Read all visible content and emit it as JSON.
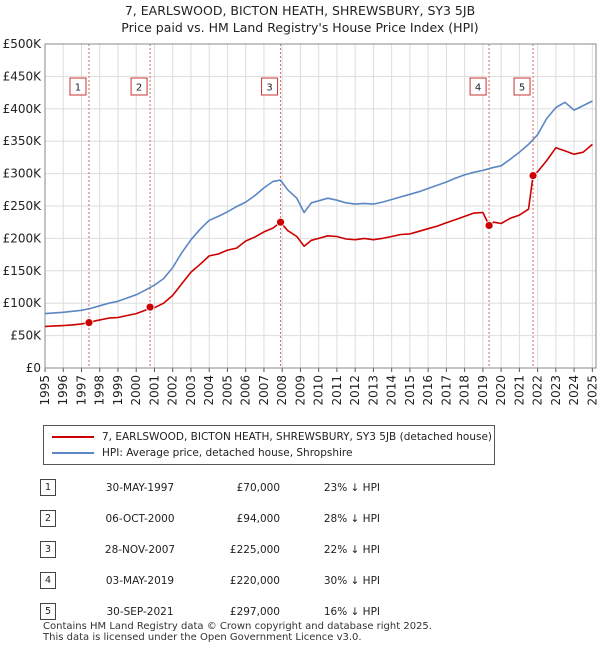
{
  "title_line1": "7, EARLSWOOD, BICTON HEATH, SHREWSBURY, SY3 5JB",
  "title_line2": "Price paid vs. HM Land Registry's House Price Index (HPI)",
  "chart_data": {
    "type": "line",
    "xlim": [
      1995,
      2025.2
    ],
    "ylim": [
      0,
      500000
    ],
    "ytick_values": [
      0,
      50000,
      100000,
      150000,
      200000,
      250000,
      300000,
      350000,
      400000,
      450000,
      500000
    ],
    "ytick_labels": [
      "£0",
      "£50K",
      "£100K",
      "£150K",
      "£200K",
      "£250K",
      "£300K",
      "£350K",
      "£400K",
      "£450K",
      "£500K"
    ],
    "xtick_labels": [
      "1995",
      "1996",
      "1997",
      "1998",
      "1999",
      "2000",
      "2001",
      "2002",
      "2003",
      "2004",
      "2005",
      "2006",
      "2007",
      "2008",
      "2009",
      "2010",
      "2011",
      "2012",
      "2013",
      "2014",
      "2015",
      "2016",
      "2017",
      "2018",
      "2019",
      "2020",
      "2021",
      "2022",
      "2023",
      "2024",
      "2025"
    ],
    "series": [
      {
        "name": "7, EARLSWOOD, BICTON HEATH, SHREWSBURY, SY3 5JB (detached house)",
        "color": "#cc0000",
        "x": [
          1995.0,
          1995.5,
          1996.0,
          1996.5,
          1997.0,
          1997.41,
          1997.8,
          1998.5,
          1999.0,
          1999.5,
          2000.0,
          2000.5,
          2000.76,
          2001.0,
          2001.5,
          2002.0,
          2002.5,
          2003.0,
          2003.5,
          2004.0,
          2004.5,
          2005.0,
          2005.5,
          2006.0,
          2006.5,
          2007.0,
          2007.5,
          2007.91,
          2008.3,
          2008.8,
          2009.2,
          2009.6,
          2010.0,
          2010.5,
          2011.0,
          2011.5,
          2012.0,
          2012.5,
          2013.0,
          2013.5,
          2014.0,
          2014.5,
          2015.0,
          2015.5,
          2016.0,
          2016.5,
          2017.0,
          2017.5,
          2018.0,
          2018.5,
          2019.0,
          2019.34,
          2019.6,
          2020.0,
          2020.5,
          2021.0,
          2021.5,
          2021.75,
          2022.0,
          2022.5,
          2023.0,
          2023.5,
          2024.0,
          2024.5,
          2025.0
        ],
        "y": [
          64000,
          65000,
          65500,
          66500,
          68000,
          70000,
          73000,
          77000,
          78000,
          81000,
          84000,
          89000,
          94000,
          93000,
          100000,
          112000,
          130000,
          148000,
          160000,
          173000,
          176000,
          182000,
          185000,
          196000,
          202000,
          210000,
          216000,
          225000,
          212000,
          203000,
          188000,
          197000,
          200000,
          204000,
          203000,
          199000,
          198000,
          200000,
          198000,
          200000,
          203000,
          206000,
          207000,
          211000,
          215000,
          219000,
          224000,
          229000,
          234000,
          239000,
          240000,
          220000,
          225000,
          223000,
          231000,
          236000,
          245000,
          297000,
          303000,
          320000,
          340000,
          335000,
          330000,
          333000,
          345000
        ]
      },
      {
        "name": "HPI: Average price, detached house, Shropshire",
        "color": "#5b87c4",
        "x": [
          1995.0,
          1995.5,
          1996.0,
          1996.5,
          1997.0,
          1997.5,
          1998.0,
          1998.5,
          1999.0,
          1999.5,
          2000.0,
          2000.5,
          2001.0,
          2001.5,
          2002.0,
          2002.5,
          2003.0,
          2003.5,
          2004.0,
          2004.5,
          2005.0,
          2005.5,
          2006.0,
          2006.5,
          2007.0,
          2007.5,
          2007.9,
          2008.3,
          2008.8,
          2009.2,
          2009.6,
          2010.0,
          2010.5,
          2011.0,
          2011.5,
          2012.0,
          2012.5,
          2013.0,
          2013.5,
          2014.0,
          2014.5,
          2015.0,
          2015.5,
          2016.0,
          2016.5,
          2017.0,
          2017.5,
          2018.0,
          2018.5,
          2019.0,
          2019.5,
          2020.0,
          2020.5,
          2021.0,
          2021.5,
          2022.0,
          2022.5,
          2023.0,
          2023.5,
          2024.0,
          2024.5,
          2025.0
        ],
        "y": [
          84000,
          85000,
          86000,
          87500,
          89000,
          92000,
          96000,
          100000,
          103000,
          108000,
          113000,
          120000,
          128000,
          138000,
          155000,
          178000,
          198000,
          214000,
          228000,
          234000,
          241000,
          249000,
          256000,
          266000,
          278000,
          288000,
          290000,
          275000,
          262000,
          240000,
          255000,
          258000,
          262000,
          259000,
          255000,
          253000,
          254000,
          253000,
          256000,
          260000,
          264000,
          268000,
          272000,
          277000,
          282000,
          287000,
          293000,
          298000,
          302000,
          305000,
          309000,
          312000,
          322000,
          333000,
          345000,
          360000,
          385000,
          402000,
          410000,
          398000,
          405000,
          412000
        ]
      }
    ],
    "sales": [
      {
        "n": "1",
        "x": 1997.41,
        "y": 70000
      },
      {
        "n": "2",
        "x": 2000.76,
        "y": 94000
      },
      {
        "n": "3",
        "x": 2007.91,
        "y": 225000
      },
      {
        "n": "4",
        "x": 2019.34,
        "y": 220000
      },
      {
        "n": "5",
        "x": 2021.75,
        "y": 297000
      }
    ]
  },
  "legend": {
    "property_label": "7, EARLSWOOD, BICTON HEATH, SHREWSBURY, SY3 5JB (detached house)",
    "hpi_label": "HPI: Average price, detached house, Shropshire",
    "property_color": "#cc0000",
    "hpi_color": "#5b87c4"
  },
  "transactions": [
    {
      "num": "1",
      "date": "30-MAY-1997",
      "price": "£70,000",
      "hpi": "23% ↓ HPI"
    },
    {
      "num": "2",
      "date": "06-OCT-2000",
      "price": "£94,000",
      "hpi": "28% ↓ HPI"
    },
    {
      "num": "3",
      "date": "28-NOV-2007",
      "price": "£225,000",
      "hpi": "22% ↓ HPI"
    },
    {
      "num": "4",
      "date": "03-MAY-2019",
      "price": "£220,000",
      "hpi": "30% ↓ HPI"
    },
    {
      "num": "5",
      "date": "30-SEP-2021",
      "price": "£297,000",
      "hpi": "16% ↓ HPI"
    }
  ],
  "footer_line1": "Contains HM Land Registry data © Crown copyright and database right 2025.",
  "footer_line2": "This data is licensed under the Open Government Licence v3.0."
}
